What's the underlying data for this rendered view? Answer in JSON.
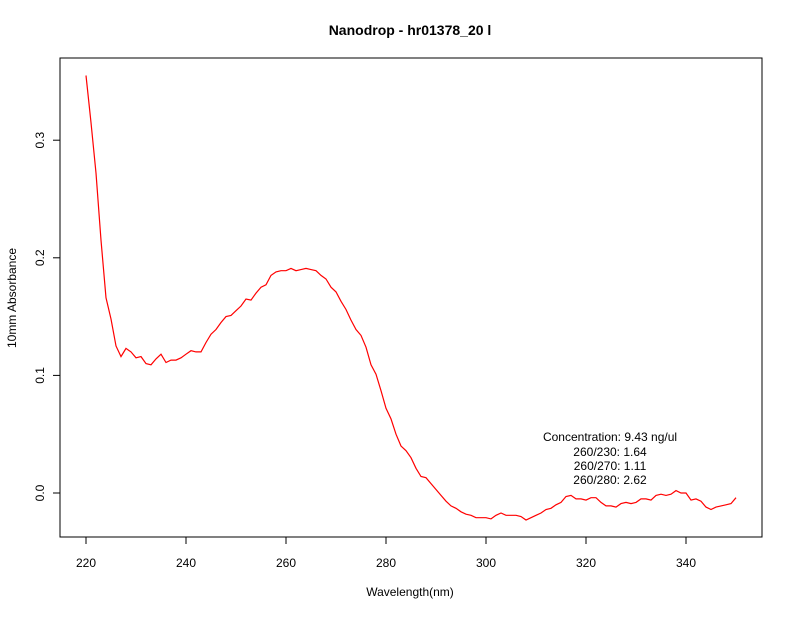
{
  "chart_data": {
    "type": "line",
    "title": "Nanodrop - hr01378_20 l",
    "xlabel": "Wavelength(nm)",
    "ylabel": "10mm Absorbance",
    "xlim": [
      215,
      355
    ],
    "ylim": [
      -0.035,
      0.37
    ],
    "xticks": [
      220,
      240,
      260,
      280,
      300,
      320,
      340
    ],
    "yticks": [
      0.0,
      0.1,
      0.2,
      0.3
    ],
    "ytick_labels": [
      "0.0",
      "0.1",
      "0.2",
      "0.3"
    ],
    "grid": false,
    "line_color": "#ff0000",
    "x_start": 220,
    "x_step": 1,
    "values": [
      0.355,
      0.315,
      0.272,
      0.215,
      0.166,
      0.148,
      0.125,
      0.116,
      0.123,
      0.12,
      0.115,
      0.116,
      0.11,
      0.109,
      0.114,
      0.118,
      0.111,
      0.113,
      0.113,
      0.115,
      0.118,
      0.121,
      0.12,
      0.12,
      0.128,
      0.135,
      0.139,
      0.145,
      0.15,
      0.151,
      0.155,
      0.159,
      0.165,
      0.164,
      0.17,
      0.175,
      0.177,
      0.185,
      0.188,
      0.189,
      0.189,
      0.191,
      0.189,
      0.19,
      0.191,
      0.19,
      0.189,
      0.185,
      0.182,
      0.175,
      0.171,
      0.163,
      0.156,
      0.147,
      0.139,
      0.134,
      0.124,
      0.109,
      0.101,
      0.087,
      0.072,
      0.063,
      0.05,
      0.04,
      0.036,
      0.03,
      0.021,
      0.014,
      0.013,
      0.008,
      0.003,
      -0.002,
      -0.007,
      -0.011,
      -0.013,
      -0.016,
      -0.018,
      -0.019,
      -0.021,
      -0.021,
      -0.021,
      -0.022,
      -0.019,
      -0.017,
      -0.019,
      -0.019,
      -0.019,
      -0.02,
      -0.023,
      -0.021,
      -0.019,
      -0.017,
      -0.014,
      -0.013,
      -0.01,
      -0.008,
      -0.003,
      -0.002,
      -0.005,
      -0.005,
      -0.006,
      -0.004,
      -0.004,
      -0.008,
      -0.011,
      -0.011,
      -0.012,
      -0.009,
      -0.008,
      -0.009,
      -0.008,
      -0.005,
      -0.005,
      -0.006,
      -0.002,
      -0.001,
      -0.002,
      -0.001,
      0.002,
      0.0,
      0.0,
      -0.006,
      -0.005,
      -0.007,
      -0.012,
      -0.014,
      -0.012,
      -0.011,
      -0.01,
      -0.009,
      -0.004
    ],
    "annotations": [
      "Concentration: 9.43 ng/ul",
      "260/230: 1.64",
      "260/270: 1.11",
      "260/280: 2.62"
    ]
  }
}
